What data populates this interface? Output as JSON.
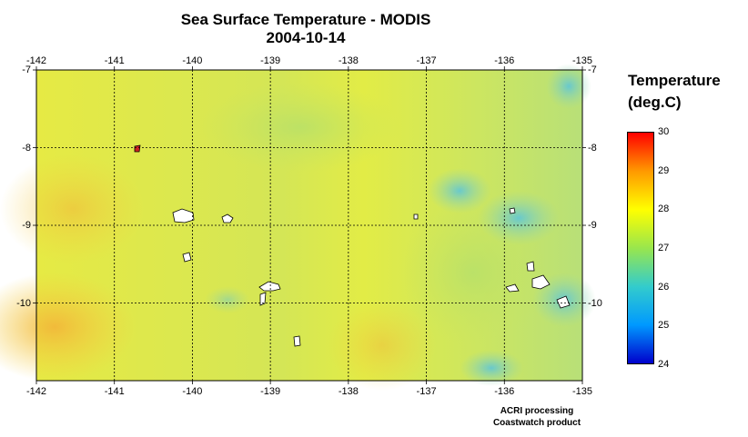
{
  "title": {
    "line1": "Sea Surface Temperature - MODIS",
    "line2": "2004-10-14"
  },
  "map": {
    "lon_ticks": [
      "-142",
      "-141",
      "-140",
      "-139",
      "-138",
      "-137",
      "-136",
      "-135"
    ],
    "lat_ticks": [
      "-7",
      "-8",
      "-9",
      "-10"
    ],
    "lon_range": [
      -142,
      -135
    ],
    "lat_range": [
      -11,
      -7
    ],
    "grid": "dotted lines at each degree",
    "colors": {
      "ocean_base": "#d8e84a",
      "warm_patch": "#f5c83a",
      "cool_patch": "#7ccfc6",
      "land": "#ffffff"
    }
  },
  "colorbar": {
    "title_line1": "Temperature",
    "title_line2": "(deg.C)",
    "ticks": [
      "30",
      "29",
      "28",
      "27",
      "26",
      "25",
      "24"
    ],
    "range": [
      24,
      30
    ],
    "colors": [
      "#ff0000",
      "#ff9900",
      "#ffff00",
      "#99e64d",
      "#33cccc",
      "#0099ff",
      "#0000cc"
    ]
  },
  "credit": {
    "line1": "ACRI processing",
    "line2": "Coastwatch product"
  }
}
